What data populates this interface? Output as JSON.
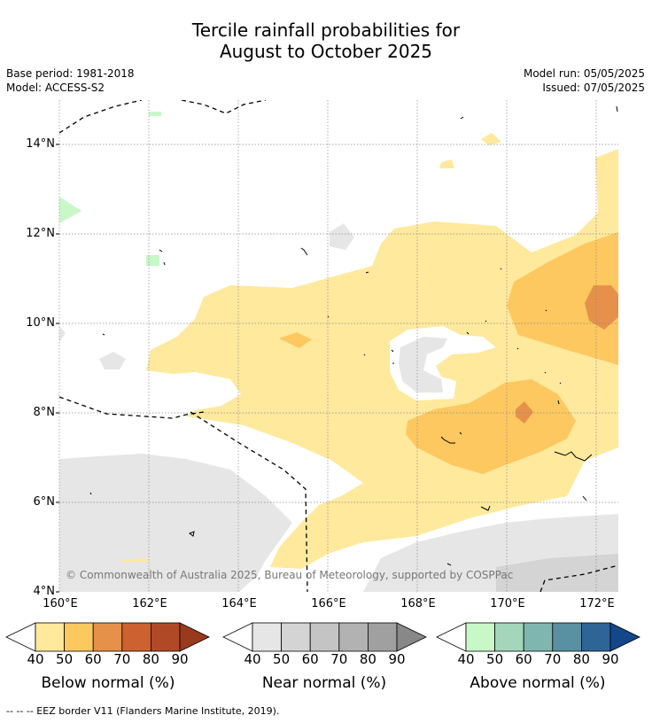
{
  "title_line1": "Tercile rainfall probabilities for",
  "title_line2": "August to October 2025",
  "base_period": "Base period: 1981-2018",
  "model": "Model: ACCESS-S2",
  "model_run": "Model run: 05/05/2025",
  "issued": "Issued: 07/05/2025",
  "copyright": "© Commonwealth of Australia 2025, Bureau of Meteorology, supported by COSPPac",
  "footer": "--  --  -- EEZ border V11 (Flanders Marine Institute, 2019).",
  "map": {
    "lat_labels": [
      "14°N",
      "12°N",
      "10°N",
      "8°N",
      "6°N",
      "4°N"
    ],
    "lon_labels": [
      "160°E",
      "162°E",
      "164°E",
      "166°E",
      "168°E",
      "170°E",
      "172°E"
    ],
    "lat_range": [
      4,
      15
    ],
    "lon_range": [
      160,
      172.5
    ]
  },
  "colorbars": [
    {
      "title": "Below normal (%)",
      "ticks": [
        "40",
        "50",
        "60",
        "70",
        "80",
        "90"
      ],
      "colors": [
        "#fee99d",
        "#fdc85f",
        "#e6914a",
        "#cd6130",
        "#b04a26",
        "#9a3a1c"
      ]
    },
    {
      "title": "Near normal (%)",
      "ticks": [
        "40",
        "50",
        "60",
        "70",
        "80",
        "90"
      ],
      "colors": [
        "#e6e6e6",
        "#d4d4d4",
        "#c4c4c4",
        "#b2b2b2",
        "#a0a0a0",
        "#888888"
      ]
    },
    {
      "title": "Above normal (%)",
      "ticks": [
        "40",
        "50",
        "60",
        "70",
        "80",
        "90"
      ],
      "colors": [
        "#c8f8c8",
        "#a3d6bb",
        "#80b6b0",
        "#5990a2",
        "#2f6497",
        "#13478a"
      ]
    }
  ]
}
